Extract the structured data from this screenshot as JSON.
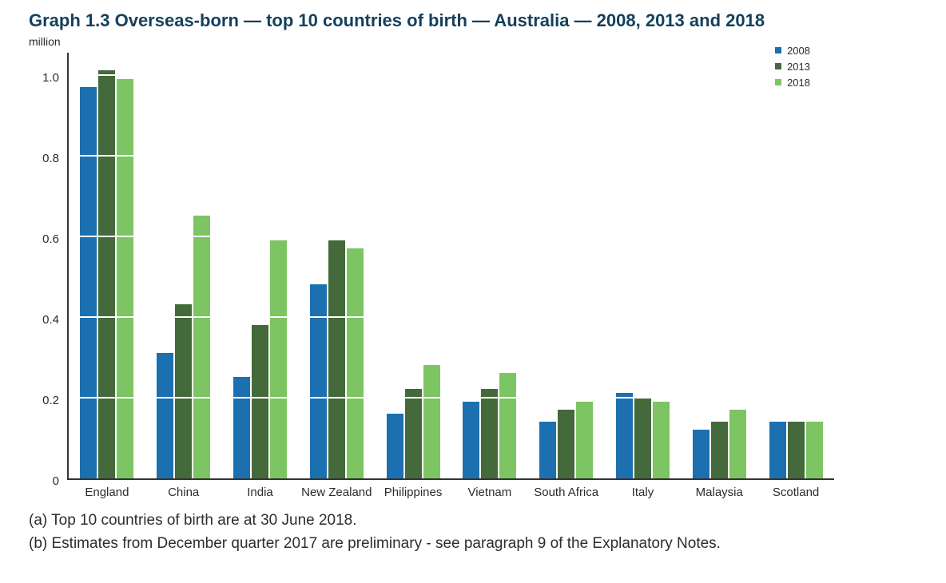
{
  "page": {
    "title": "Graph 1.3 Overseas-born — top 10 countries of birth — Australia — 2008, 2013 and 2018",
    "footnotes": [
      "(a) Top 10 countries of birth are at 30 June 2018.",
      "(b) Estimates from December quarter 2017 are preliminary - see paragraph 9 of the Explanatory Notes."
    ]
  },
  "chart_data": {
    "type": "bar",
    "title": "Graph 1.3 Overseas-born — top 10 countries of birth — Australia — 2008, 2013 and 2018",
    "xlabel": "",
    "ylabel": "million",
    "categories": [
      "England",
      "China",
      "India",
      "New Zealand",
      "Philippines",
      "Vietnam",
      "South Africa",
      "Italy",
      "Malaysia",
      "Scotland"
    ],
    "series": [
      {
        "name": "2008",
        "color": "#1c70b0",
        "values": [
          0.97,
          0.31,
          0.25,
          0.48,
          0.16,
          0.19,
          0.14,
          0.21,
          0.12,
          0.14
        ]
      },
      {
        "name": "2013",
        "color": "#44693a",
        "values": [
          1.01,
          0.43,
          0.38,
          0.59,
          0.22,
          0.22,
          0.17,
          0.2,
          0.14,
          0.14
        ]
      },
      {
        "name": "2018",
        "color": "#7dc462",
        "values": [
          0.99,
          0.65,
          0.59,
          0.57,
          0.28,
          0.26,
          0.19,
          0.19,
          0.17,
          0.14
        ]
      }
    ],
    "ylim": [
      0,
      1.05
    ],
    "yticks": [
      0,
      0.2,
      0.4,
      0.6,
      0.8,
      1.0
    ],
    "grid": "white horizontal lines drawn over bars at each y tick",
    "legend_position": "top-right",
    "colors": {
      "title": "#15405d",
      "axis": "#333333",
      "text": "#2b2b2b"
    }
  }
}
